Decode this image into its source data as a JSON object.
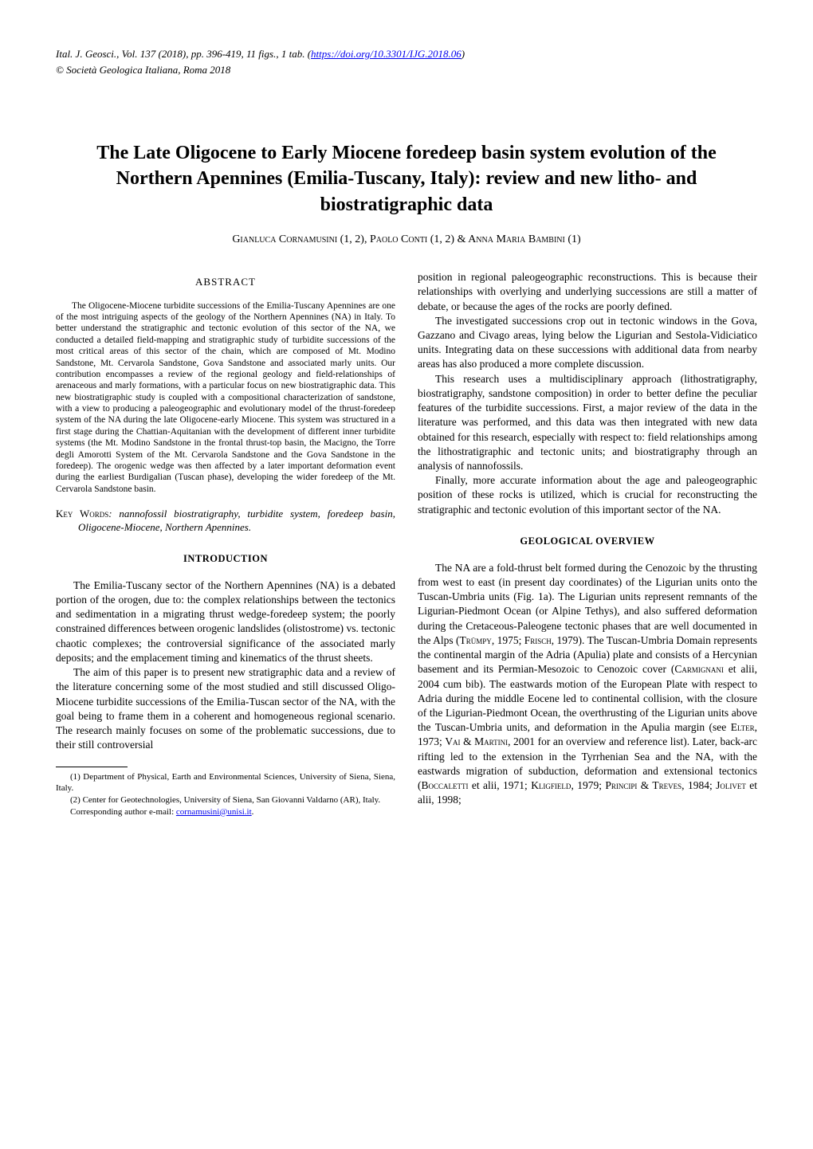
{
  "header": {
    "journal_line": "Ital. J. Geosci., Vol. 137 (2018), pp. 396-419, 11 figs., 1 tab. (",
    "doi_url": "https://doi.org/10.3301/IJG.2018.06",
    "journal_line_close": ")",
    "copyright": "© Società Geologica Italiana, Roma 2018"
  },
  "title": "The Late Oligocene to Early Miocene foredeep basin system evolution of the Northern Apennines (Emilia-Tuscany, Italy): review and new litho- and biostratigraphic data",
  "authors": "Gianluca Cornamusini (1, 2), Paolo Conti (1, 2) & Anna Maria Bambini (1)",
  "abstract": {
    "heading": "ABSTRACT",
    "body": "The Oligocene-Miocene turbidite successions of the Emilia-Tuscany Apennines are one of the most intriguing aspects of the geology of the Northern Apennines (NA) in Italy. To better understand the stratigraphic and tectonic evolution of this sector of the NA, we conducted a detailed field-mapping and stratigraphic study of turbidite successions of the most critical areas of this sector of the chain, which are composed of Mt. Modino Sandstone, Mt. Cervarola Sandstone, Gova Sandstone and associated marly units. Our contribution encompasses a review of the regional geology and field-relationships of arenaceous and marly formations, with a particular focus on new biostratigraphic data. This new biostratigraphic study is coupled with a compositional characterization of sandstone, with a view to producing a paleogeographic and evolutionary model of the thrust-foredeep system of the NA during the late Oligocene-early Miocene. This system was structured in a first stage during the Chattian-Aquitanian with the development of different inner turbidite systems (the Mt. Modino Sandstone in the frontal thrust-top basin, the Macigno, the Torre degli Amorotti System of the Mt. Cervarola Sandstone and the Gova Sandstone in the foredeep). The orogenic wedge was then affected by a later important deformation event during the earliest Burdigalian (Tuscan phase), developing the wider foredeep of the Mt. Cervarola Sandstone basin."
  },
  "keywords": {
    "label": "Key Words",
    "text": ": nannofossil biostratigraphy, turbidite system, foredeep basin, Oligocene-Miocene, Northern Apennines."
  },
  "sections": {
    "introduction": {
      "heading": "INTRODUCTION",
      "p1": "The Emilia-Tuscany sector of the Northern Apennines (NA) is a debated portion of the orogen, due to: the complex relationships between the tectonics and sedimentation in a migrating thrust wedge-foredeep system; the poorly constrained differences between orogenic landslides (olistostrome) vs. tectonic chaotic complexes; the controversial significance of the associated marly deposits; and the emplacement timing and kinematics of the thrust sheets.",
      "p2": "The aim of this paper is to present new stratigraphic data and a review of the literature concerning some of the most studied and still discussed Oligo-Miocene turbidite successions of the Emilia-Tuscan sector of the NA, with the goal being to frame them in a coherent and homogeneous regional scenario. The research mainly focuses on some of the problematic successions, due to their still controversial",
      "p3": "position in regional paleogeographic reconstructions. This is because their relationships with overlying and underlying successions are still a matter of debate, or because the ages of the rocks are poorly defined.",
      "p4": "The investigated successions crop out in tectonic windows in the Gova, Gazzano and Civago areas, lying below the Ligurian and Sestola-Vidiciatico units. Integrating data on these successions with additional data from nearby areas has also produced a more complete discussion.",
      "p5": "This research uses a multidisciplinary approach (lithostratigraphy, biostratigraphy, sandstone composition) in order to better define the peculiar features of the turbidite successions. First, a major review of the data in the literature was performed, and this data was then integrated with new data obtained for this research, especially with respect to: field relationships among the lithostratigraphic and tectonic units; and biostratigraphy through an analysis of nannofossils.",
      "p6": "Finally, more accurate information about the age and paleogeographic position of these rocks is utilized, which is crucial for reconstructing the stratigraphic and tectonic evolution of this important sector of the NA."
    },
    "overview": {
      "heading": "GEOLOGICAL OVERVIEW",
      "p1_a": "The NA are a fold-thrust belt formed during the Cenozoic by the thrusting from west to east (in present day coordinates) of the Ligurian units onto the Tuscan-Umbria units (Fig. 1a). The Ligurian units represent remnants of the Ligurian-Piedmont Ocean (or Alpine Tethys), and also suffered deformation during the Cretaceous-Paleogene tectonic phases that are well documented in the Alps (",
      "ref1": "Trümpy",
      "p1_b": ", 1975; ",
      "ref2": "Frisch",
      "p1_c": ", 1979). The Tuscan-Umbria Domain represents the continental margin of the Adria (Apulia) plate and consists of a Hercynian basement and its Permian-Mesozoic to Cenozoic cover (",
      "ref3": "Carmignani",
      "p1_d": " et alii, 2004 cum bib). The eastwards motion of the European Plate with respect to Adria during the middle Eocene led to continental collision, with the closure of the Ligurian-Piedmont Ocean, the overthrusting of the Ligurian units above the Tuscan-Umbria units, and deformation in the Apulia margin (see ",
      "ref4": "Elter",
      "p1_e": ", 1973; ",
      "ref5": "Vai & Martini",
      "p1_f": ", 2001 for an overview and reference list). Later, back-arc rifting led to the extension in the Tyrrhenian Sea and the NA, with the eastwards migration of subduction, deformation and extensional tectonics (",
      "ref6": "Boccaletti",
      "p1_g": " et alii, 1971; ",
      "ref7": "Kligfield",
      "p1_h": ", 1979; ",
      "ref8": "Principi & Treves",
      "p1_i": ", 1984; ",
      "ref9": "Jolivet",
      "p1_j": " et alii, 1998;"
    }
  },
  "footnotes": {
    "f1": "(1) Department of Physical, Earth and Environmental Sciences, University of Siena, Siena, Italy.",
    "f2": "(2) Center for Geotechnologies, University of Siena, San Giovanni Valdarno (AR), Italy.",
    "f3a": "Corresponding author e-mail: ",
    "f3b": "cornamusini@unisi.it",
    "f3c": "."
  }
}
